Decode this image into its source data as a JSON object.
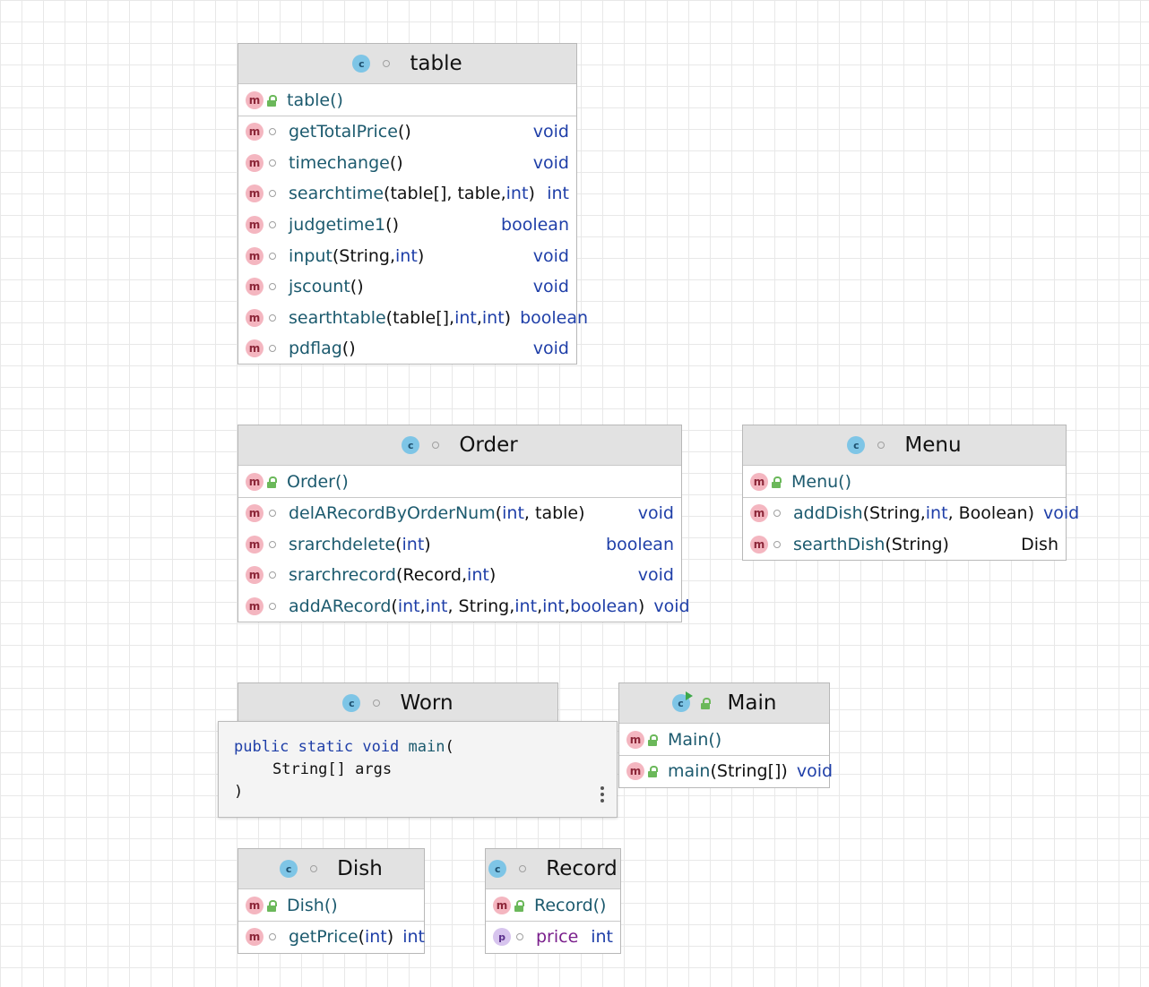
{
  "classes": {
    "table": {
      "name": "table",
      "ctor": "table()",
      "methods": [
        {
          "name": "getTotalPrice",
          "params": "()",
          "ret": "void"
        },
        {
          "name": "timechange",
          "params": "()",
          "ret": "void"
        },
        {
          "name": "searchtime",
          "params_parts": [
            "(table[], table, ",
            "int",
            ")"
          ],
          "ret": "int"
        },
        {
          "name": "judgetime1",
          "params": "()",
          "ret": "boolean"
        },
        {
          "name": "input",
          "params_parts": [
            "(String, ",
            "int",
            ")"
          ],
          "ret": "void"
        },
        {
          "name": "jscount",
          "params": "()",
          "ret": "void"
        },
        {
          "name": "searthtable",
          "params_parts": [
            "(table[], ",
            "int",
            ", ",
            "int",
            ")"
          ],
          "ret": "boolean"
        },
        {
          "name": "pdflag",
          "params": "()",
          "ret": "void"
        }
      ]
    },
    "order": {
      "name": "Order",
      "ctor": "Order()",
      "methods": [
        {
          "name": "delARecordByOrderNum",
          "params_parts": [
            "(",
            "int",
            ", table)"
          ],
          "ret": "void"
        },
        {
          "name": "srarchdelete",
          "params_parts": [
            "(",
            "int",
            ")"
          ],
          "ret": "boolean"
        },
        {
          "name": "srarchrecord",
          "params_parts": [
            "(Record, ",
            "int",
            ")"
          ],
          "ret": "void"
        },
        {
          "name": "addARecord",
          "params_parts": [
            "(",
            "int",
            ", ",
            "int",
            ", String, ",
            "int",
            ", ",
            "int",
            ", ",
            "boolean",
            ")"
          ],
          "ret": "void"
        }
      ]
    },
    "menu": {
      "name": "Menu",
      "ctor": "Menu()",
      "methods": [
        {
          "name": "addDish",
          "params_parts": [
            "(String, ",
            "int",
            ", Boolean)"
          ],
          "ret": "void"
        },
        {
          "name": "searthDish",
          "params": "(String)",
          "ret": "Dish"
        }
      ]
    },
    "worn": {
      "name": "Worn"
    },
    "main": {
      "name": "Main",
      "ctor": "Main()",
      "methods": [
        {
          "name": "main",
          "params": "(String[])",
          "ret": "void"
        }
      ]
    },
    "dish": {
      "name": "Dish",
      "ctor": "Dish()",
      "methods": [
        {
          "name": "getPrice",
          "params_parts": [
            "(",
            "int",
            ")"
          ],
          "ret": "int"
        }
      ]
    },
    "record": {
      "name": "Record",
      "ctor": "Record()",
      "fields": [
        {
          "name": "price",
          "type": "int"
        }
      ]
    }
  },
  "popup": {
    "kw1": "public",
    "kw2": "static",
    "kw3": "void",
    "fn": "main",
    "open": "(",
    "param": "String[] args",
    "close": ")"
  },
  "icons": {
    "class": "c",
    "method": "m",
    "property": "p"
  }
}
